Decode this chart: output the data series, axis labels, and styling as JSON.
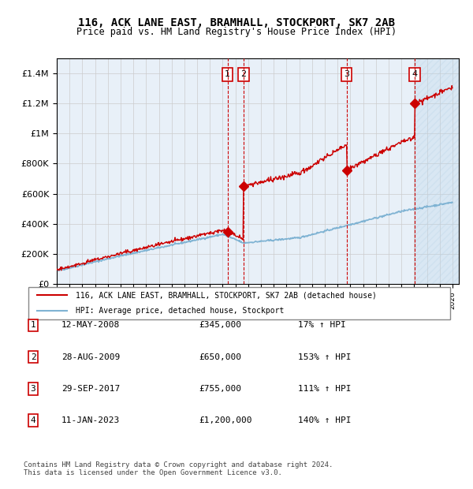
{
  "title": "116, ACK LANE EAST, BRAMHALL, STOCKPORT, SK7 2AB",
  "subtitle": "Price paid vs. HM Land Registry's House Price Index (HPI)",
  "legend_line1": "116, ACK LANE EAST, BRAMHALL, STOCKPORT, SK7 2AB (detached house)",
  "legend_line2": "HPI: Average price, detached house, Stockport",
  "footnote": "Contains HM Land Registry data © Crown copyright and database right 2024.\nThis data is licensed under the Open Government Licence v3.0.",
  "sale_dates": [
    "12-MAY-2008",
    "28-AUG-2009",
    "29-SEP-2017",
    "11-JAN-2023"
  ],
  "sale_prices": [
    345000,
    650000,
    755000,
    1200000
  ],
  "sale_labels": [
    "1",
    "2",
    "3",
    "4"
  ],
  "sale_pct": [
    "17% ↑ HPI",
    "153% ↑ HPI",
    "111% ↑ HPI",
    "140% ↑ HPI"
  ],
  "table_dates": [
    "12-MAY-2008",
    "28-AUG-2009",
    "29-SEP-2017",
    "11-JAN-2023"
  ],
  "table_prices": [
    "£345,000",
    "£650,000",
    "£755,000",
    "£1,200,000"
  ],
  "ylim": [
    0,
    1500000
  ],
  "hpi_color": "#a8c4e0",
  "sale_color": "#cc0000",
  "hatch_color": "#c8ddf0",
  "background_color": "#f0f4ff",
  "grid_color": "#cccccc"
}
